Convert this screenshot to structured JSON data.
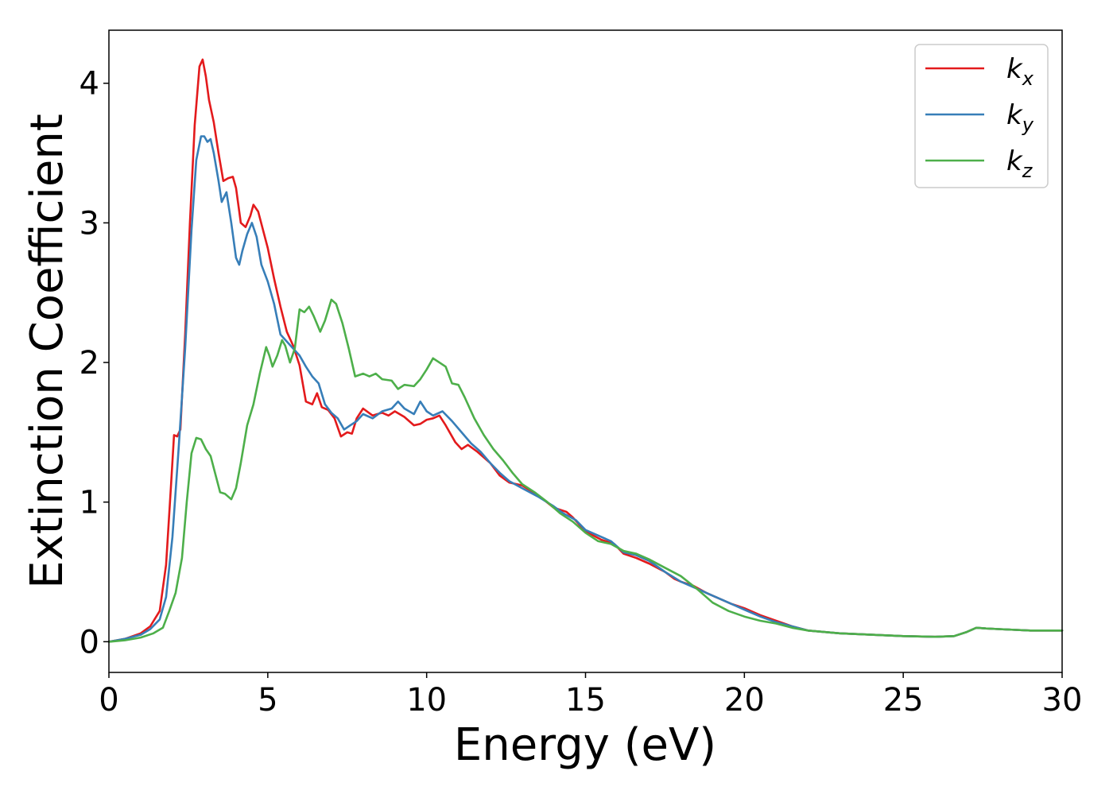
{
  "chart_data": {
    "type": "line",
    "title": "",
    "xlabel": "Energy (eV)",
    "ylabel": "Extinction Coefficient",
    "xlim": [
      0,
      30
    ],
    "ylim": [
      -0.22,
      4.38
    ],
    "xticks": [
      0,
      5,
      10,
      15,
      20,
      25,
      30
    ],
    "yticks": [
      0,
      1,
      2,
      3,
      4
    ],
    "grid": false,
    "legend_position": "top-right",
    "series": [
      {
        "name": "kx",
        "legend_base": "k",
        "legend_sub": "x",
        "color": "#e31a1c",
        "points": [
          [
            0,
            0.0
          ],
          [
            0.5,
            0.02
          ],
          [
            1.0,
            0.06
          ],
          [
            1.3,
            0.11
          ],
          [
            1.6,
            0.22
          ],
          [
            1.8,
            0.55
          ],
          [
            1.95,
            1.1
          ],
          [
            2.05,
            1.48
          ],
          [
            2.15,
            1.47
          ],
          [
            2.25,
            1.52
          ],
          [
            2.4,
            2.2
          ],
          [
            2.55,
            3.0
          ],
          [
            2.7,
            3.7
          ],
          [
            2.85,
            4.12
          ],
          [
            2.95,
            4.17
          ],
          [
            3.05,
            4.05
          ],
          [
            3.15,
            3.88
          ],
          [
            3.3,
            3.72
          ],
          [
            3.45,
            3.5
          ],
          [
            3.6,
            3.3
          ],
          [
            3.75,
            3.32
          ],
          [
            3.9,
            3.33
          ],
          [
            4.0,
            3.25
          ],
          [
            4.15,
            3.0
          ],
          [
            4.3,
            2.97
          ],
          [
            4.45,
            3.05
          ],
          [
            4.55,
            3.13
          ],
          [
            4.7,
            3.08
          ],
          [
            4.85,
            2.95
          ],
          [
            5.0,
            2.82
          ],
          [
            5.2,
            2.6
          ],
          [
            5.4,
            2.4
          ],
          [
            5.6,
            2.22
          ],
          [
            5.8,
            2.12
          ],
          [
            6.0,
            1.98
          ],
          [
            6.2,
            1.72
          ],
          [
            6.4,
            1.7
          ],
          [
            6.55,
            1.78
          ],
          [
            6.7,
            1.68
          ],
          [
            6.9,
            1.66
          ],
          [
            7.1,
            1.6
          ],
          [
            7.3,
            1.47
          ],
          [
            7.5,
            1.5
          ],
          [
            7.65,
            1.49
          ],
          [
            7.8,
            1.6
          ],
          [
            8.0,
            1.67
          ],
          [
            8.3,
            1.62
          ],
          [
            8.6,
            1.64
          ],
          [
            8.8,
            1.62
          ],
          [
            9.0,
            1.65
          ],
          [
            9.3,
            1.61
          ],
          [
            9.6,
            1.55
          ],
          [
            9.8,
            1.56
          ],
          [
            10.0,
            1.59
          ],
          [
            10.2,
            1.6
          ],
          [
            10.4,
            1.62
          ],
          [
            10.6,
            1.55
          ],
          [
            10.9,
            1.43
          ],
          [
            11.1,
            1.38
          ],
          [
            11.3,
            1.41
          ],
          [
            11.6,
            1.36
          ],
          [
            12.0,
            1.28
          ],
          [
            12.3,
            1.19
          ],
          [
            12.6,
            1.14
          ],
          [
            13.0,
            1.12
          ],
          [
            13.5,
            1.05
          ],
          [
            14.0,
            0.96
          ],
          [
            14.4,
            0.93
          ],
          [
            14.6,
            0.89
          ],
          [
            15.0,
            0.79
          ],
          [
            15.5,
            0.73
          ],
          [
            15.9,
            0.7
          ],
          [
            16.2,
            0.63
          ],
          [
            16.6,
            0.6
          ],
          [
            17.0,
            0.56
          ],
          [
            17.5,
            0.5
          ],
          [
            17.8,
            0.45
          ],
          [
            18.0,
            0.43
          ],
          [
            18.4,
            0.4
          ],
          [
            18.8,
            0.35
          ],
          [
            19.2,
            0.31
          ],
          [
            19.6,
            0.27
          ],
          [
            20.0,
            0.24
          ],
          [
            20.5,
            0.19
          ],
          [
            21.0,
            0.15
          ],
          [
            21.5,
            0.11
          ],
          [
            22.0,
            0.08
          ],
          [
            23.0,
            0.06
          ],
          [
            24.0,
            0.05
          ],
          [
            25.0,
            0.04
          ],
          [
            26.0,
            0.035
          ],
          [
            26.6,
            0.04
          ],
          [
            27.0,
            0.07
          ],
          [
            27.3,
            0.1
          ],
          [
            27.6,
            0.095
          ],
          [
            28.0,
            0.09
          ],
          [
            29.0,
            0.08
          ],
          [
            30.0,
            0.08
          ]
        ]
      },
      {
        "name": "ky",
        "legend_base": "k",
        "legend_sub": "y",
        "color": "#377eb8",
        "points": [
          [
            0,
            0.0
          ],
          [
            0.5,
            0.02
          ],
          [
            1.0,
            0.05
          ],
          [
            1.3,
            0.09
          ],
          [
            1.6,
            0.16
          ],
          [
            1.8,
            0.32
          ],
          [
            2.0,
            0.75
          ],
          [
            2.2,
            1.4
          ],
          [
            2.4,
            2.1
          ],
          [
            2.6,
            2.95
          ],
          [
            2.75,
            3.45
          ],
          [
            2.9,
            3.62
          ],
          [
            3.0,
            3.62
          ],
          [
            3.1,
            3.58
          ],
          [
            3.2,
            3.6
          ],
          [
            3.3,
            3.5
          ],
          [
            3.45,
            3.3
          ],
          [
            3.55,
            3.15
          ],
          [
            3.7,
            3.22
          ],
          [
            3.85,
            3.0
          ],
          [
            4.0,
            2.75
          ],
          [
            4.1,
            2.7
          ],
          [
            4.2,
            2.8
          ],
          [
            4.35,
            2.92
          ],
          [
            4.5,
            3.0
          ],
          [
            4.65,
            2.9
          ],
          [
            4.8,
            2.7
          ],
          [
            5.0,
            2.58
          ],
          [
            5.2,
            2.42
          ],
          [
            5.4,
            2.2
          ],
          [
            5.6,
            2.15
          ],
          [
            5.8,
            2.1
          ],
          [
            6.0,
            2.05
          ],
          [
            6.2,
            1.97
          ],
          [
            6.4,
            1.9
          ],
          [
            6.6,
            1.85
          ],
          [
            6.8,
            1.7
          ],
          [
            7.0,
            1.64
          ],
          [
            7.2,
            1.6
          ],
          [
            7.4,
            1.52
          ],
          [
            7.6,
            1.55
          ],
          [
            7.8,
            1.58
          ],
          [
            8.0,
            1.63
          ],
          [
            8.3,
            1.6
          ],
          [
            8.6,
            1.65
          ],
          [
            8.9,
            1.67
          ],
          [
            9.1,
            1.72
          ],
          [
            9.3,
            1.67
          ],
          [
            9.6,
            1.63
          ],
          [
            9.8,
            1.72
          ],
          [
            10.0,
            1.65
          ],
          [
            10.2,
            1.62
          ],
          [
            10.5,
            1.65
          ],
          [
            10.8,
            1.58
          ],
          [
            11.1,
            1.5
          ],
          [
            11.4,
            1.42
          ],
          [
            11.7,
            1.36
          ],
          [
            12.0,
            1.28
          ],
          [
            12.3,
            1.21
          ],
          [
            12.6,
            1.15
          ],
          [
            13.0,
            1.1
          ],
          [
            13.5,
            1.04
          ],
          [
            14.0,
            0.97
          ],
          [
            14.3,
            0.92
          ],
          [
            14.7,
            0.87
          ],
          [
            15.0,
            0.8
          ],
          [
            15.5,
            0.75
          ],
          [
            15.8,
            0.72
          ],
          [
            16.2,
            0.64
          ],
          [
            16.6,
            0.62
          ],
          [
            17.0,
            0.58
          ],
          [
            17.5,
            0.5
          ],
          [
            18.0,
            0.43
          ],
          [
            18.5,
            0.38
          ],
          [
            19.0,
            0.33
          ],
          [
            19.5,
            0.28
          ],
          [
            20.0,
            0.23
          ],
          [
            20.5,
            0.18
          ],
          [
            21.0,
            0.14
          ],
          [
            21.5,
            0.11
          ],
          [
            22.0,
            0.08
          ],
          [
            23.0,
            0.06
          ],
          [
            24.0,
            0.05
          ],
          [
            25.0,
            0.04
          ],
          [
            26.0,
            0.035
          ],
          [
            26.6,
            0.04
          ],
          [
            27.0,
            0.07
          ],
          [
            27.3,
            0.1
          ],
          [
            27.6,
            0.095
          ],
          [
            28.0,
            0.09
          ],
          [
            29.0,
            0.08
          ],
          [
            30.0,
            0.08
          ]
        ]
      },
      {
        "name": "kz",
        "legend_base": "k",
        "legend_sub": "z",
        "color": "#4daf4a",
        "points": [
          [
            0,
            0.0
          ],
          [
            0.5,
            0.01
          ],
          [
            1.0,
            0.03
          ],
          [
            1.4,
            0.06
          ],
          [
            1.7,
            0.1
          ],
          [
            1.9,
            0.22
          ],
          [
            2.1,
            0.35
          ],
          [
            2.3,
            0.6
          ],
          [
            2.45,
            1.0
          ],
          [
            2.6,
            1.35
          ],
          [
            2.75,
            1.46
          ],
          [
            2.9,
            1.45
          ],
          [
            3.05,
            1.38
          ],
          [
            3.2,
            1.33
          ],
          [
            3.35,
            1.2
          ],
          [
            3.5,
            1.07
          ],
          [
            3.65,
            1.06
          ],
          [
            3.85,
            1.02
          ],
          [
            4.0,
            1.1
          ],
          [
            4.15,
            1.28
          ],
          [
            4.35,
            1.55
          ],
          [
            4.55,
            1.7
          ],
          [
            4.75,
            1.92
          ],
          [
            4.95,
            2.11
          ],
          [
            5.05,
            2.05
          ],
          [
            5.15,
            1.97
          ],
          [
            5.3,
            2.05
          ],
          [
            5.45,
            2.16
          ],
          [
            5.55,
            2.12
          ],
          [
            5.7,
            2.0
          ],
          [
            5.85,
            2.1
          ],
          [
            6.0,
            2.38
          ],
          [
            6.15,
            2.36
          ],
          [
            6.3,
            2.4
          ],
          [
            6.45,
            2.33
          ],
          [
            6.65,
            2.22
          ],
          [
            6.8,
            2.3
          ],
          [
            7.0,
            2.45
          ],
          [
            7.15,
            2.42
          ],
          [
            7.35,
            2.28
          ],
          [
            7.55,
            2.1
          ],
          [
            7.75,
            1.9
          ],
          [
            8.0,
            1.92
          ],
          [
            8.2,
            1.9
          ],
          [
            8.4,
            1.92
          ],
          [
            8.6,
            1.88
          ],
          [
            8.9,
            1.87
          ],
          [
            9.1,
            1.81
          ],
          [
            9.3,
            1.84
          ],
          [
            9.6,
            1.83
          ],
          [
            9.8,
            1.88
          ],
          [
            10.0,
            1.95
          ],
          [
            10.2,
            2.03
          ],
          [
            10.4,
            2.0
          ],
          [
            10.6,
            1.97
          ],
          [
            10.8,
            1.85
          ],
          [
            11.0,
            1.84
          ],
          [
            11.2,
            1.75
          ],
          [
            11.5,
            1.6
          ],
          [
            11.8,
            1.48
          ],
          [
            12.1,
            1.38
          ],
          [
            12.4,
            1.3
          ],
          [
            12.7,
            1.21
          ],
          [
            13.0,
            1.13
          ],
          [
            13.4,
            1.07
          ],
          [
            13.8,
            1.0
          ],
          [
            14.2,
            0.92
          ],
          [
            14.6,
            0.86
          ],
          [
            15.0,
            0.78
          ],
          [
            15.4,
            0.72
          ],
          [
            15.8,
            0.7
          ],
          [
            16.2,
            0.65
          ],
          [
            16.6,
            0.63
          ],
          [
            17.0,
            0.59
          ],
          [
            17.5,
            0.53
          ],
          [
            18.0,
            0.47
          ],
          [
            18.5,
            0.38
          ],
          [
            19.0,
            0.28
          ],
          [
            19.5,
            0.22
          ],
          [
            20.0,
            0.18
          ],
          [
            20.5,
            0.15
          ],
          [
            21.0,
            0.13
          ],
          [
            21.5,
            0.1
          ],
          [
            22.0,
            0.08
          ],
          [
            23.0,
            0.06
          ],
          [
            24.0,
            0.05
          ],
          [
            25.0,
            0.04
          ],
          [
            26.0,
            0.035
          ],
          [
            26.6,
            0.04
          ],
          [
            27.0,
            0.07
          ],
          [
            27.3,
            0.1
          ],
          [
            27.6,
            0.095
          ],
          [
            28.0,
            0.09
          ],
          [
            29.0,
            0.08
          ],
          [
            30.0,
            0.08
          ]
        ]
      }
    ]
  }
}
